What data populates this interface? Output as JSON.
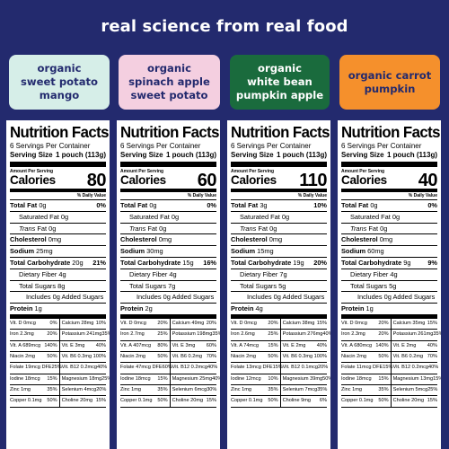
{
  "headline": "real science from real food",
  "colors": {
    "background": "#232a6e",
    "flavors": [
      {
        "bg": "#d6eee8",
        "fg": "#232a6e"
      },
      {
        "bg": "#f4cfe0",
        "fg": "#232a6e"
      },
      {
        "bg": "#1a6b3d",
        "fg": "#ffffff"
      },
      {
        "bg": "#f5902c",
        "fg": "#232a6e"
      }
    ]
  },
  "flavors": [
    "organic\nsweet potato\nmango",
    "organic\nspinach apple\nsweet potato",
    "organic\nwhite bean\npumpkin apple",
    "organic carrot pumpkin"
  ],
  "common": {
    "title": "Nutrition Facts",
    "servings": "6 Servings Per Container",
    "serving_size_label": "Serving Size",
    "serving_size_value": "1 pouch (113g)",
    "amount_per_serving": "Amount Per Serving",
    "calories_label": "Calories",
    "dv_header": "% Daily Value"
  },
  "panels": [
    {
      "calories": "80",
      "rows": [
        {
          "label": "Total Fat",
          "bold": true,
          "value": "0g",
          "pct": "0%"
        },
        {
          "label": "Saturated Fat",
          "bold": false,
          "value": "0g",
          "pct": "",
          "indent": 1
        },
        {
          "label": "Trans",
          "italic": true,
          "value": "Fat 0g",
          "pct": "",
          "indent": 1
        },
        {
          "label": "Cholesterol",
          "bold": true,
          "value": "0mg",
          "pct": ""
        },
        {
          "label": "Sodium",
          "bold": true,
          "value": "25mg",
          "pct": ""
        },
        {
          "label": "Total Carbohydrate",
          "bold": true,
          "value": "20g",
          "pct": "21%"
        },
        {
          "label": "Dietary Fiber",
          "bold": false,
          "value": "4g",
          "pct": "",
          "indent": 1
        },
        {
          "label": "Total Sugars",
          "bold": false,
          "value": "8g",
          "pct": "",
          "indent": 1
        },
        {
          "label": "Includes",
          "bold": false,
          "value": "0g Added Sugars",
          "pct": "",
          "indent": 2
        },
        {
          "label": "Protein",
          "bold": true,
          "value": "1g",
          "pct": "",
          "thick": true
        }
      ],
      "micros": [
        [
          "Vit. D 0mcg",
          "0%",
          "Calcium 28mg",
          "10%"
        ],
        [
          "Iron 2.3mg",
          "20%",
          "Potassium 241mg",
          "35%"
        ],
        [
          "Vit. A 689mcg",
          "140%",
          "Vit. E 3mg",
          "40%"
        ],
        [
          "Niacin 2mg",
          "50%",
          "Vit. B6 0.3mg",
          "100%"
        ],
        [
          "Folate 19mcg DFE",
          "25%",
          "Vit. B12 0.2mcg",
          "40%"
        ],
        [
          "Iodine 18mcg",
          "15%",
          "Magnesium 18mg",
          "25%"
        ],
        [
          "Zinc 1mg",
          "35%",
          "Selenium 4mcg",
          "20%"
        ],
        [
          "Copper 0.1mg",
          "50%",
          "Choline 20mg",
          "15%"
        ]
      ]
    },
    {
      "calories": "60",
      "rows": [
        {
          "label": "Total Fat",
          "bold": true,
          "value": "0g",
          "pct": "0%"
        },
        {
          "label": "Saturated Fat",
          "bold": false,
          "value": "0g",
          "pct": "",
          "indent": 1
        },
        {
          "label": "Trans",
          "italic": true,
          "value": "Fat 0g",
          "pct": "",
          "indent": 1
        },
        {
          "label": "Cholesterol",
          "bold": true,
          "value": "0mg",
          "pct": ""
        },
        {
          "label": "Sodium",
          "bold": true,
          "value": "30mg",
          "pct": ""
        },
        {
          "label": "Total Carbohydrate",
          "bold": true,
          "value": "15g",
          "pct": "16%"
        },
        {
          "label": "Dietary Fiber",
          "bold": false,
          "value": "4g",
          "pct": "",
          "indent": 1
        },
        {
          "label": "Total Sugars",
          "bold": false,
          "value": "7g",
          "pct": "",
          "indent": 1
        },
        {
          "label": "Includes",
          "bold": false,
          "value": "0g Added Sugars",
          "pct": "",
          "indent": 2
        },
        {
          "label": "Protein",
          "bold": true,
          "value": "2g",
          "pct": "",
          "thick": true
        }
      ],
      "micros": [
        [
          "Vit. D 0mcg",
          "20%",
          "Calcium 49mg",
          "20%"
        ],
        [
          "Iron 2.7mg",
          "25%",
          "Potassium 198mg",
          "35%"
        ],
        [
          "Vit. A 407mcg",
          "80%",
          "Vit. E 3mg",
          "60%"
        ],
        [
          "Niacin 2mg",
          "50%",
          "Vit. B6 0.2mg",
          "70%"
        ],
        [
          "Folate 47mcg DFE",
          "60%",
          "Vit. B12 0.2mcg",
          "40%"
        ],
        [
          "Iodine 18mcg",
          "15%",
          "Magnesium 25mg",
          "40%"
        ],
        [
          "Zinc 1mg",
          "35%",
          "Selenium 6mcg",
          "30%"
        ],
        [
          "Copper 0.1mg",
          "50%",
          "Choline 20mg",
          "15%"
        ]
      ]
    },
    {
      "calories": "110",
      "rows": [
        {
          "label": "Total Fat",
          "bold": true,
          "value": "3g",
          "pct": "10%"
        },
        {
          "label": "Saturated Fat",
          "bold": false,
          "value": "0g",
          "pct": "",
          "indent": 1
        },
        {
          "label": "Trans",
          "italic": true,
          "value": "Fat 0g",
          "pct": "",
          "indent": 1
        },
        {
          "label": "Cholesterol",
          "bold": true,
          "value": "0mg",
          "pct": ""
        },
        {
          "label": "Sodium",
          "bold": true,
          "value": "15mg",
          "pct": ""
        },
        {
          "label": "Total Carbohydrate",
          "bold": true,
          "value": "19g",
          "pct": "20%"
        },
        {
          "label": "Dietary Fiber",
          "bold": false,
          "value": "7g",
          "pct": "",
          "indent": 1
        },
        {
          "label": "Total Sugars",
          "bold": false,
          "value": "5g",
          "pct": "",
          "indent": 1
        },
        {
          "label": "Includes",
          "bold": false,
          "value": "0g Added Sugars",
          "pct": "",
          "indent": 2
        },
        {
          "label": "Protein",
          "bold": true,
          "value": "4g",
          "pct": "",
          "thick": true
        }
      ],
      "micros": [
        [
          "Vit. D 0mcg",
          "20%",
          "Calcium 38mg",
          "15%"
        ],
        [
          "Iron 2.6mg",
          "25%",
          "Potassium 276mg",
          "40%"
        ],
        [
          "Vit. A 74mcg",
          "15%",
          "Vit. E 2mg",
          "40%"
        ],
        [
          "Niacin 2mg",
          "50%",
          "Vit. B6 0.3mg",
          "100%"
        ],
        [
          "Folate 13mcg DFE",
          "15%",
          "Vit. B12 0.1mcg",
          "20%"
        ],
        [
          "Iodine 12mcg",
          "10%",
          "Magnesium 39mg",
          "50%"
        ],
        [
          "Zinc 1mg",
          "35%",
          "Selenium 7mcg",
          "35%"
        ],
        [
          "Copper 0.1mg",
          "50%",
          "Choline 9mg",
          "6%"
        ]
      ]
    },
    {
      "calories": "40",
      "rows": [
        {
          "label": "Total Fat",
          "bold": true,
          "value": "0g",
          "pct": "0%"
        },
        {
          "label": "Saturated Fat",
          "bold": false,
          "value": "0g",
          "pct": "",
          "indent": 1
        },
        {
          "label": "Trans",
          "italic": true,
          "value": "Fat 0g",
          "pct": "",
          "indent": 1
        },
        {
          "label": "Cholesterol",
          "bold": true,
          "value": "0mg",
          "pct": ""
        },
        {
          "label": "Sodium",
          "bold": true,
          "value": "60mg",
          "pct": ""
        },
        {
          "label": "Total Carbohydrate",
          "bold": true,
          "value": "9g",
          "pct": "9%"
        },
        {
          "label": "Dietary Fiber",
          "bold": false,
          "value": "4g",
          "pct": "",
          "indent": 1
        },
        {
          "label": "Total Sugars",
          "bold": false,
          "value": "5g",
          "pct": "",
          "indent": 1
        },
        {
          "label": "Includes",
          "bold": false,
          "value": "0g Added Sugars",
          "pct": "",
          "indent": 2
        },
        {
          "label": "Protein",
          "bold": true,
          "value": "1g",
          "pct": "",
          "thick": true
        }
      ],
      "micros": [
        [
          "Vit. D 0mcg",
          "20%",
          "Calcium 35mg",
          "15%"
        ],
        [
          "Iron 2.3mg",
          "20%",
          "Potassium 261mg",
          "35%"
        ],
        [
          "Vit. A 680mcg",
          "140%",
          "Vit. E 2mg",
          "40%"
        ],
        [
          "Niacin 2mg",
          "50%",
          "Vit. B6 0.2mg",
          "70%"
        ],
        [
          "Folate 11mcg DFE",
          "15%",
          "Vit. B12 0.2mcg",
          "40%"
        ],
        [
          "Iodine 18mcg",
          "15%",
          "Magnesium 13mg",
          "15%"
        ],
        [
          "Zinc 1mg",
          "35%",
          "Selenium 5mcg",
          "25%"
        ],
        [
          "Copper 0.1mg",
          "50%",
          "Choline 20mg",
          "15%"
        ]
      ]
    }
  ]
}
